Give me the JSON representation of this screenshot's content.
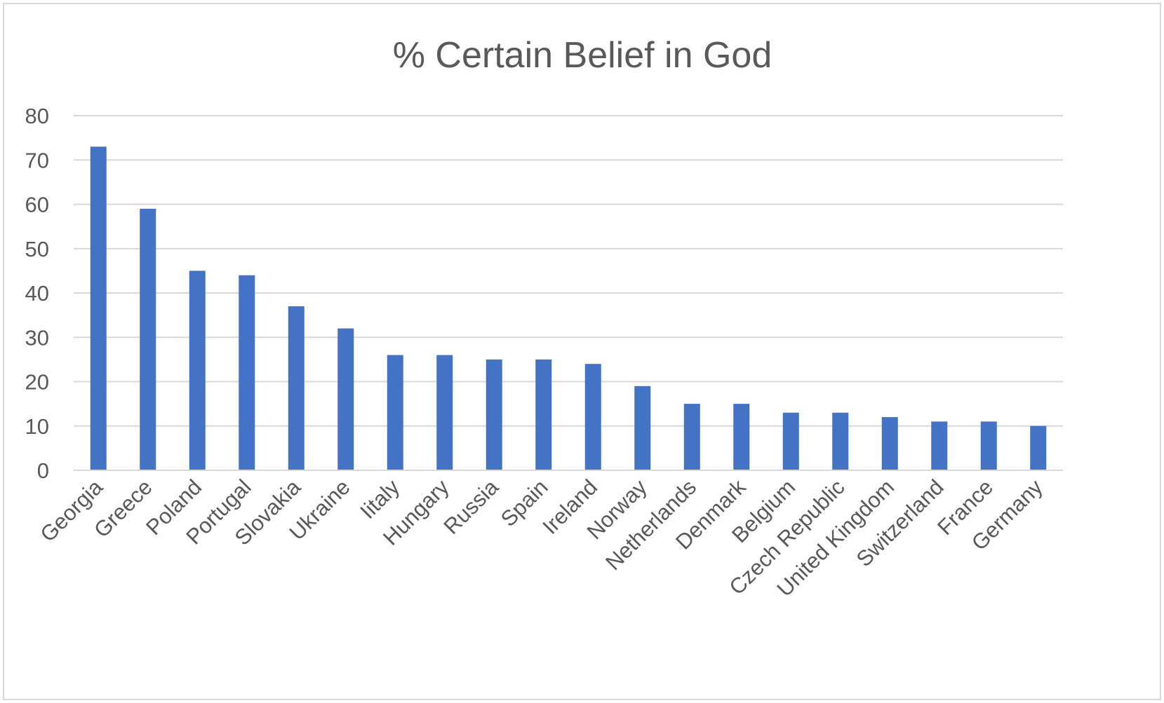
{
  "chart_data": {
    "type": "bar",
    "title": "% Certain Belief in God",
    "xlabel": "",
    "ylabel": "",
    "categories": [
      "Georgia",
      "Greece",
      "Poland",
      "Portugal",
      "Slovakia",
      "Ukraine",
      "Iitaly",
      "Hungary",
      "Russia",
      "Spain",
      "Ireland",
      "Norway",
      "Netherlands",
      "Denmark",
      "Belgium",
      "Czech Republic",
      "United Kingdom",
      "Switzerland",
      "France",
      "Germany"
    ],
    "values": [
      73,
      59,
      45,
      44,
      37,
      32,
      26,
      26,
      25,
      25,
      24,
      19,
      15,
      15,
      13,
      13,
      12,
      11,
      11,
      10
    ],
    "ylim": [
      0,
      80
    ],
    "yticks": [
      0,
      10,
      20,
      30,
      40,
      50,
      60,
      70,
      80
    ],
    "grid": true,
    "legend": "none",
    "colors": {
      "bar": "#4472c4",
      "grid": "#d9d9d9",
      "text": "#595959",
      "border": "#d9d9d9"
    }
  }
}
